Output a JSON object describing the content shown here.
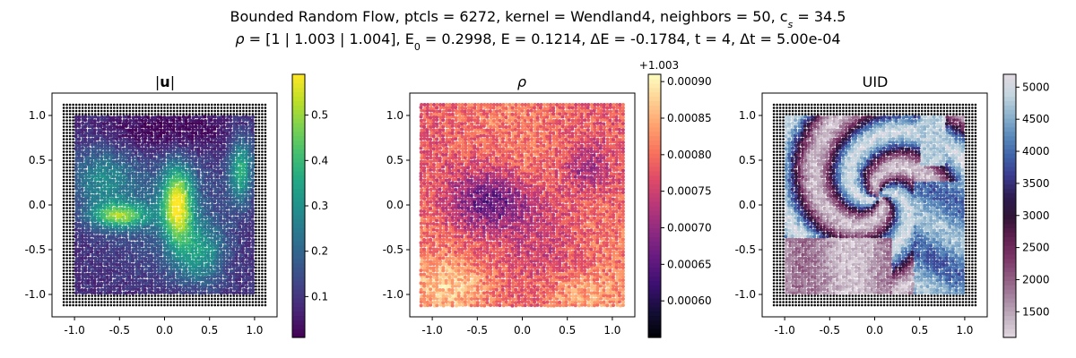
{
  "figure": {
    "title_line1": "Bounded Random Flow, ptcls = 6272, kernel = Wendland4, neighbors = 50, c",
    "title_line1_sub": "s",
    "title_line1_tail": " = 34.5",
    "title_line2_rho": "ρ",
    "title_line2_a": " = [1 | 1.003 | 1.004], E",
    "title_line2_sub": "0",
    "title_line2_b": " = 0.2998, E = 0.1214, ΔE = -0.1784, t = 4, Δt = 5.00e-04"
  },
  "chart_data": [
    {
      "type": "scatter",
      "title": "|u|",
      "title_bold_part": "u",
      "xlim": [
        -1.25,
        1.25
      ],
      "ylim": [
        -1.25,
        1.25
      ],
      "xticks": [
        "-1.0",
        "-0.5",
        "0.0",
        "0.5",
        "1.0"
      ],
      "yticks": [
        "-1.0",
        "-0.5",
        "0.0",
        "0.5",
        "1.0"
      ],
      "xtick_values": [
        -1.0,
        -0.5,
        0.0,
        0.5,
        1.0
      ],
      "ytick_values": [
        -1.0,
        -0.5,
        0.0,
        0.5,
        1.0
      ],
      "colormap": "viridis",
      "colorbar": {
        "min": 0.01,
        "max": 0.59,
        "ticks": [
          "0.1",
          "0.2",
          "0.3",
          "0.4",
          "0.5"
        ],
        "tick_values": [
          0.1,
          0.2,
          0.3,
          0.4,
          0.5
        ],
        "offset": ""
      },
      "boundary_particles_color": "#000000",
      "fluid_region": [
        -1.0,
        1.0
      ],
      "boundary_region": [
        -1.12,
        1.12
      ]
    },
    {
      "type": "scatter",
      "title": "ρ",
      "xlim": [
        -1.25,
        1.25
      ],
      "ylim": [
        -1.25,
        1.25
      ],
      "xticks": [
        "-1.0",
        "-0.5",
        "0.0",
        "0.5",
        "1.0"
      ],
      "yticks": [
        "-1.0",
        "-0.5",
        "0.0",
        "0.5",
        "1.0"
      ],
      "xtick_values": [
        -1.0,
        -0.5,
        0.0,
        0.5,
        1.0
      ],
      "ytick_values": [
        -1.0,
        -0.5,
        0.0,
        0.5,
        1.0
      ],
      "colormap": "magma",
      "colorbar": {
        "min": 0.00055,
        "max": 0.00091,
        "ticks": [
          "0.00060",
          "0.00065",
          "0.00070",
          "0.00075",
          "0.00080",
          "0.00085",
          "0.00090"
        ],
        "tick_values": [
          0.0006,
          0.00065,
          0.0007,
          0.00075,
          0.0008,
          0.00085,
          0.0009
        ],
        "offset": "+1.003"
      },
      "fluid_region": [
        -1.12,
        1.12
      ]
    },
    {
      "type": "scatter",
      "title": "UID",
      "xlim": [
        -1.25,
        1.25
      ],
      "ylim": [
        -1.25,
        1.25
      ],
      "xticks": [
        "-1.0",
        "-0.5",
        "0.0",
        "0.5",
        "1.0"
      ],
      "yticks": [
        "-1.0",
        "-0.5",
        "0.0",
        "0.5",
        "1.0"
      ],
      "xtick_values": [
        -1.0,
        -0.5,
        0.0,
        0.5,
        1.0
      ],
      "ytick_values": [
        -1.0,
        -0.5,
        0.0,
        0.5,
        1.0
      ],
      "colormap": "twilight",
      "colorbar": {
        "min": 1100,
        "max": 5200,
        "ticks": [
          "1500",
          "2000",
          "2500",
          "3000",
          "3500",
          "4000",
          "4500",
          "5000"
        ],
        "tick_values": [
          1500,
          2000,
          2500,
          3000,
          3500,
          4000,
          4500,
          5000
        ],
        "offset": ""
      },
      "boundary_particles_color": "#000000",
      "fluid_region": [
        -1.0,
        1.0
      ],
      "boundary_region": [
        -1.12,
        1.12
      ]
    }
  ]
}
